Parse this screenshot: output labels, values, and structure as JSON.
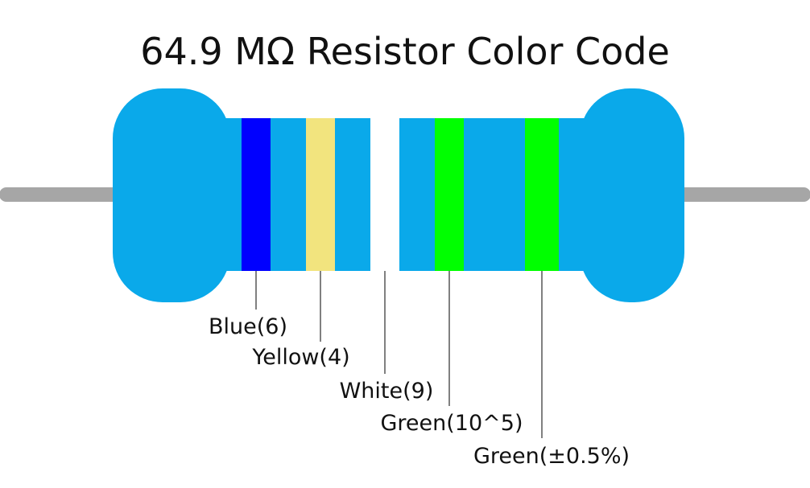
{
  "title": "64.9 MΩ Resistor Color Code",
  "bands": [
    {
      "label": "Blue(6)",
      "color": "#0000ff"
    },
    {
      "label": "Yellow(4)",
      "color": "#f2e47e"
    },
    {
      "label": "White(9)",
      "color": "#ffffff"
    },
    {
      "label": "Green(10^5)",
      "color": "#00ff00"
    },
    {
      "label": "Green(±0.5%)",
      "color": "#00ff00"
    }
  ]
}
